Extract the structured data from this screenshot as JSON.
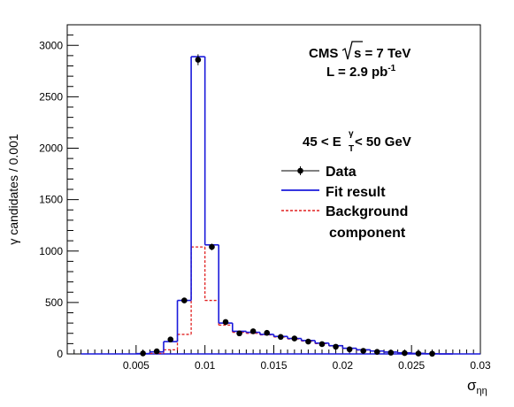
{
  "chart_data": {
    "type": "histogram",
    "ylabel": "γ candidates / 0.001",
    "xlabel_main": "σ",
    "xlabel_sub": "ηη",
    "xlim": [
      0,
      0.03
    ],
    "ylim": [
      0,
      3200
    ],
    "x_ticks": [
      0.005,
      0.01,
      0.015,
      0.02,
      0.025,
      0.03
    ],
    "x_tick_labels": [
      "0.005",
      "0.01",
      "0.015",
      "0.02",
      "0.025",
      "0.03"
    ],
    "y_ticks": [
      0,
      500,
      1000,
      1500,
      2000,
      2500,
      3000
    ],
    "y_tick_labels": [
      "0",
      "500",
      "1000",
      "1500",
      "2000",
      "2500",
      "3000"
    ],
    "bin_edges": [
      0.001,
      0.002,
      0.003,
      0.004,
      0.005,
      0.006,
      0.007,
      0.008,
      0.009,
      0.01,
      0.011,
      0.012,
      0.013,
      0.014,
      0.015,
      0.016,
      0.017,
      0.018,
      0.019,
      0.02,
      0.021,
      0.022,
      0.023,
      0.024,
      0.025,
      0.026,
      0.027,
      0.028,
      0.029,
      0.03
    ],
    "series": [
      {
        "name": "Data",
        "style": "points",
        "values": [
          0,
          0,
          0,
          0,
          5,
          25,
          140,
          520,
          2860,
          1040,
          310,
          200,
          220,
          205,
          165,
          150,
          120,
          95,
          70,
          45,
          30,
          20,
          12,
          8,
          4,
          2,
          0,
          0,
          0
        ],
        "errors": [
          0,
          0,
          0,
          0,
          2,
          5,
          12,
          23,
          53,
          32,
          18,
          14,
          15,
          14,
          13,
          12,
          11,
          10,
          8,
          7,
          5,
          4,
          3,
          3,
          2,
          1,
          0,
          0,
          0
        ]
      },
      {
        "name": "Fit result",
        "style": "solid-step",
        "color": "#1a1adb",
        "values": [
          0,
          0,
          0,
          0,
          3,
          20,
          120,
          520,
          2890,
          1060,
          300,
          220,
          210,
          190,
          170,
          150,
          130,
          105,
          80,
          55,
          40,
          28,
          18,
          10,
          5,
          2,
          0,
          0,
          0
        ]
      },
      {
        "name": "Background",
        "name_line2": "component",
        "style": "dashed-step",
        "color": "#e02020",
        "values": [
          0,
          0,
          0,
          0,
          0,
          5,
          40,
          190,
          1040,
          520,
          280,
          210,
          200,
          185,
          165,
          145,
          125,
          100,
          78,
          54,
          38,
          27,
          17,
          9,
          5,
          2,
          0,
          0,
          0
        ]
      }
    ],
    "legend_position": "top-right",
    "annotations": {
      "experiment": "CMS",
      "sqrt_s": "s = 7 TeV",
      "lumi_prefix": "L = 2.9 pb",
      "lumi_sup": "-1",
      "et_left": "45 < E",
      "et_sup": "γ",
      "et_sub": "T",
      "et_right": " < 50 GeV"
    }
  }
}
